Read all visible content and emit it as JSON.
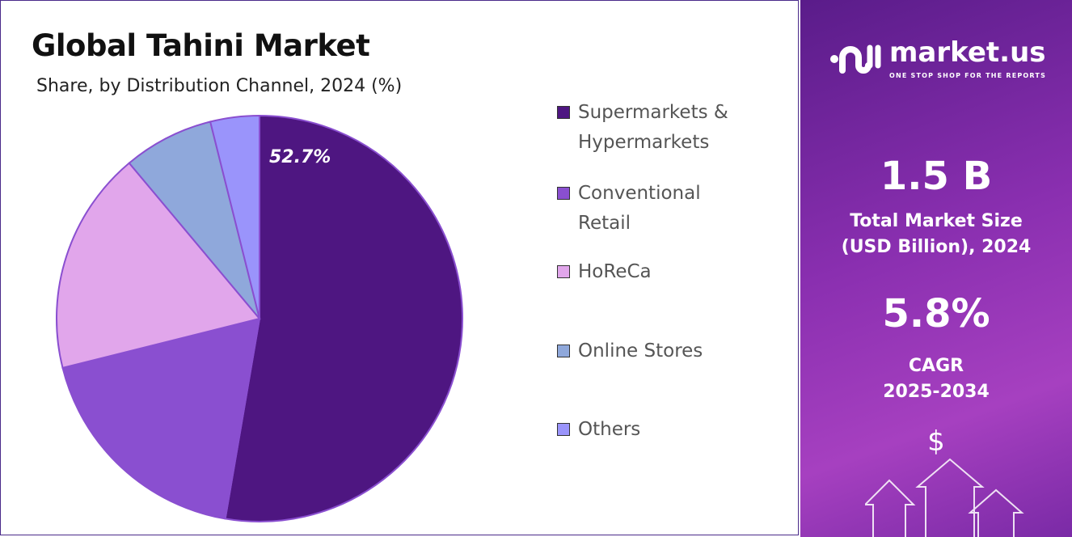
{
  "chart_data": {
    "type": "pie",
    "title": "Global Tahini Market",
    "subtitle": "Share, by Distribution Channel, 2024 (%)",
    "categories": [
      "Supermarkets & Hypermarkets",
      "Conventional Retail",
      "HoReCa",
      "Online Stores",
      "Others"
    ],
    "legend_lines": [
      [
        "Supermarkets &",
        "Hypermarkets"
      ],
      [
        "Conventional",
        "Retail"
      ],
      [
        "HoReCa"
      ],
      [
        "Online Stores"
      ],
      [
        "Others"
      ]
    ],
    "values": [
      52.7,
      18.4,
      17.8,
      7.2,
      3.9
    ],
    "colors": [
      "#4e1681",
      "#8a4fd0",
      "#e1a6eb",
      "#8fa8db",
      "#9a94fb"
    ],
    "data_labels": [
      "52.7%",
      "",
      "",
      "",
      ""
    ],
    "legend_placement": "right"
  },
  "sidebar": {
    "logo_text": "market.us",
    "logo_tagline": "ONE STOP SHOP FOR THE REPORTS",
    "market_size": "1.5 B",
    "market_size_label_1": "Total Market Size",
    "market_size_label_2": "(USD Billion), 2024",
    "cagr": "5.8%",
    "cagr_label_1": "CAGR",
    "cagr_label_2": "2025-2034",
    "dollar": "$"
  }
}
